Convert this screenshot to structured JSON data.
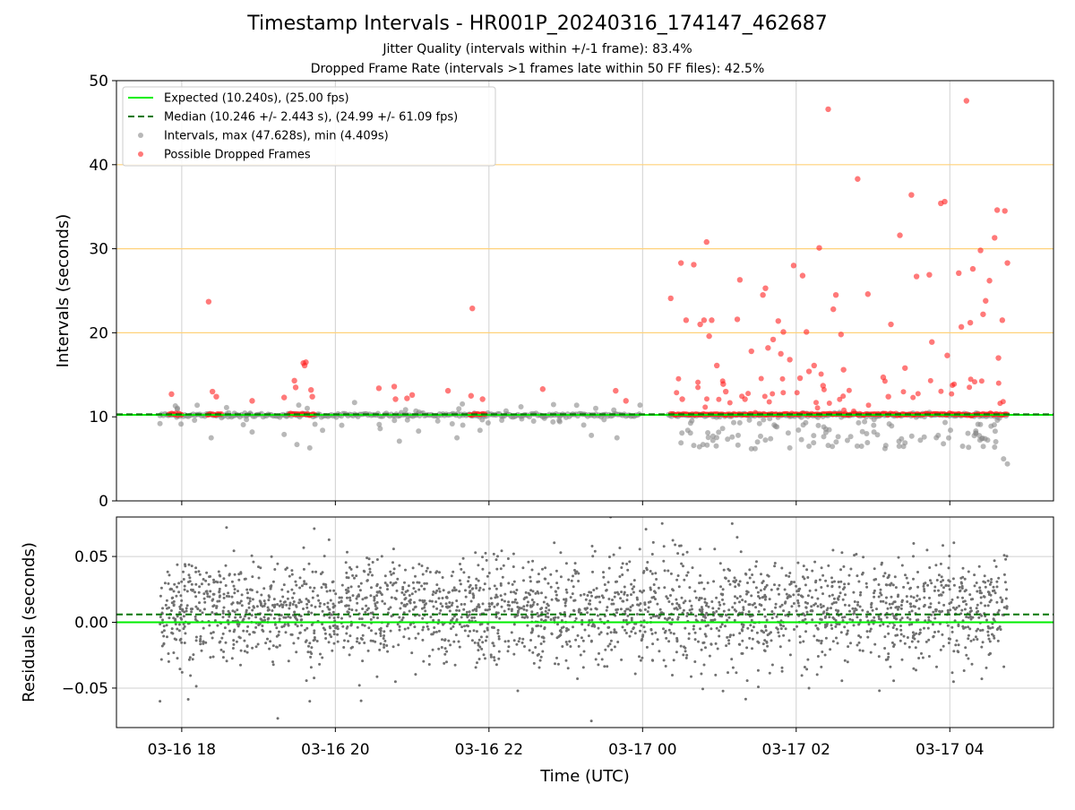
{
  "chart_data": [
    {
      "type": "scatter",
      "title": "Timestamp Intervals - HR001P_20240316_174147_462687",
      "subtitle_lines": [
        "Jitter Quality (intervals within +/-1 frame): 83.4%",
        "Dropped Frame Rate (intervals >1 frames late within 50 FF files): 42.5%"
      ],
      "xlabel": "",
      "ylabel": "Intervals (seconds)",
      "xlim": [
        "2024-03-16 17:09",
        "2024-03-17 05:21"
      ],
      "ylim": [
        0,
        50
      ],
      "yticks": [
        0,
        10,
        20,
        30,
        40,
        50
      ],
      "grid": true,
      "reference_lines": [
        {
          "name": "Expected (10.240s), (25.00 fps)",
          "y": 10.24,
          "color": "#00ee00",
          "style": "solid"
        },
        {
          "name": "Median (10.246 +/- 2.443 s), (24.99 +/- 61.09 fps)",
          "y": 10.246,
          "color": "#007700",
          "style": "dashed"
        }
      ],
      "horizontal_guides": [
        {
          "y": 20,
          "color": "#ffd27a"
        },
        {
          "y": 30,
          "color": "#ffd27a"
        },
        {
          "y": 40,
          "color": "#ffd27a"
        }
      ],
      "legend": {
        "position": "top-left",
        "entries": [
          "Expected (10.240s), (25.00 fps)",
          "Median (10.246 +/- 2.443 s), (24.99 +/- 61.09 fps)",
          "Intervals, max (47.628s), min (4.409s)",
          "Possible Dropped Frames"
        ]
      },
      "series": [
        {
          "name": "Intervals, max (47.628s), min (4.409s)",
          "color": "#888888",
          "x": [
            "2024-03-16 17:43",
            "2024-03-16 17:55",
            "2024-03-16 18:10",
            "2024-03-16 18:23",
            "2024-03-16 18:35",
            "2024-03-16 18:55",
            "2024-03-16 19:20",
            "2024-03-16 19:30",
            "2024-03-16 19:40",
            "2024-03-16 19:50",
            "2024-03-16 20:05",
            "2024-03-16 20:15",
            "2024-03-16 20:35",
            "2024-03-16 20:50",
            "2024-03-16 21:05",
            "2024-03-16 21:20",
            "2024-03-16 21:35",
            "2024-03-16 21:53",
            "2024-03-16 22:10",
            "2024-03-16 22:25",
            "2024-03-16 22:50",
            "2024-03-16 23:20",
            "2024-03-16 23:40",
            "2024-03-16 23:58",
            "2024-03-17 00:30",
            "2024-03-17 00:40",
            "2024-03-17 00:55",
            "2024-03-17 01:10",
            "2024-03-17 01:25",
            "2024-03-17 01:40",
            "2024-03-17 01:55",
            "2024-03-17 02:10",
            "2024-03-17 02:25",
            "2024-03-17 02:40",
            "2024-03-17 02:55",
            "2024-03-17 03:10",
            "2024-03-17 03:25",
            "2024-03-17 03:40",
            "2024-03-17 03:55",
            "2024-03-17 04:10",
            "2024-03-17 04:25",
            "2024-03-17 04:35",
            "2024-03-17 04:42",
            "2024-03-17 04:45"
          ],
          "y": [
            9.2,
            11.3,
            9.6,
            7.5,
            11.1,
            8.2,
            7.9,
            6.7,
            6.3,
            8.4,
            9.0,
            11.7,
            8.6,
            7.1,
            8.3,
            9.5,
            7.5,
            8.4,
            9.6,
            11.2,
            9.4,
            7.8,
            7.5,
            11.4,
            6.9,
            6.6,
            7.7,
            7.6,
            6.2,
            7.4,
            6.3,
            6.5,
            6.6,
            7.2,
            8.0,
            6.6,
            6.9,
            7.6,
            6.8,
            6.5,
            7.4,
            6.4,
            5.0,
            4.4
          ]
        },
        {
          "name": "Possible Dropped Frames",
          "color": "#ff2020",
          "x": [
            "2024-03-16 17:52",
            "2024-03-16 18:21",
            "2024-03-16 18:24",
            "2024-03-16 18:27",
            "2024-03-16 18:55",
            "2024-03-16 19:20",
            "2024-03-16 19:28",
            "2024-03-16 19:29",
            "2024-03-16 19:35",
            "2024-03-16 19:36",
            "2024-03-16 19:37",
            "2024-03-16 19:41",
            "2024-03-16 19:42",
            "2024-03-16 20:34",
            "2024-03-16 20:46",
            "2024-03-16 20:47",
            "2024-03-16 20:56",
            "2024-03-16 21:00",
            "2024-03-16 21:28",
            "2024-03-16 21:46",
            "2024-03-16 21:47",
            "2024-03-16 21:55",
            "2024-03-16 22:42",
            "2024-03-16 23:39",
            "2024-03-16 23:47",
            "2024-03-17 00:22",
            "2024-03-17 00:30",
            "2024-03-17 00:31",
            "2024-03-17 00:34",
            "2024-03-17 00:40",
            "2024-03-17 00:45",
            "2024-03-17 00:48",
            "2024-03-17 00:50",
            "2024-03-17 00:52",
            "2024-03-17 00:54",
            "2024-03-17 00:58",
            "2024-03-17 01:03",
            "2024-03-17 01:05",
            "2024-03-17 01:14",
            "2024-03-17 01:16",
            "2024-03-17 01:20",
            "2024-03-17 01:25",
            "2024-03-17 01:34",
            "2024-03-17 01:36",
            "2024-03-17 01:38",
            "2024-03-17 01:42",
            "2024-03-17 01:46",
            "2024-03-17 01:48",
            "2024-03-17 01:50",
            "2024-03-17 01:55",
            "2024-03-17 01:58",
            "2024-03-17 02:03",
            "2024-03-17 02:05",
            "2024-03-17 02:08",
            "2024-03-17 02:10",
            "2024-03-17 02:14",
            "2024-03-17 02:18",
            "2024-03-17 02:21",
            "2024-03-17 02:25",
            "2024-03-17 02:29",
            "2024-03-17 02:31",
            "2024-03-17 02:35",
            "2024-03-17 02:37",
            "2024-03-17 02:48",
            "2024-03-17 02:56",
            "2024-03-17 03:08",
            "2024-03-17 03:12",
            "2024-03-17 03:14",
            "2024-03-17 03:21",
            "2024-03-17 03:25",
            "2024-03-17 03:30",
            "2024-03-17 03:34",
            "2024-03-17 03:44",
            "2024-03-17 03:46",
            "2024-03-17 03:53",
            "2024-03-17 03:56",
            "2024-03-17 03:58",
            "2024-03-17 04:07",
            "2024-03-17 04:09",
            "2024-03-17 04:13",
            "2024-03-17 04:16",
            "2024-03-17 04:18",
            "2024-03-17 04:24",
            "2024-03-17 04:26",
            "2024-03-17 04:28",
            "2024-03-17 04:31",
            "2024-03-17 04:35",
            "2024-03-17 04:37",
            "2024-03-17 04:38",
            "2024-03-17 04:41",
            "2024-03-17 04:43",
            "2024-03-17 04:45"
          ],
          "y": [
            12.7,
            23.7,
            13.0,
            12.4,
            11.9,
            12.3,
            14.3,
            13.5,
            16.4,
            16.1,
            16.5,
            13.2,
            12.4,
            13.4,
            13.6,
            12.1,
            12.2,
            12.6,
            13.1,
            12.5,
            22.9,
            12.1,
            13.3,
            13.1,
            11.9,
            24.1,
            28.3,
            12.1,
            21.5,
            28.1,
            21.0,
            21.5,
            30.8,
            19.6,
            21.5,
            16.1,
            13.9,
            13.0,
            21.6,
            26.3,
            12.1,
            17.8,
            24.5,
            25.3,
            18.2,
            19.2,
            21.4,
            17.5,
            20.1,
            16.8,
            28.0,
            14.6,
            26.8,
            20.1,
            15.4,
            16.1,
            30.1,
            13.7,
            46.6,
            22.8,
            24.5,
            19.8,
            15.6,
            38.3,
            24.6,
            14.7,
            12.4,
            21.0,
            31.6,
            15.8,
            36.4,
            26.7,
            26.9,
            18.9,
            35.4,
            35.6,
            17.3,
            27.1,
            20.7,
            47.6,
            21.2,
            27.6,
            29.8,
            22.2,
            23.8,
            26.2,
            31.3,
            34.6,
            17.0,
            21.5,
            34.5,
            28.3
          ]
        }
      ]
    },
    {
      "type": "scatter",
      "title": "",
      "xlabel": "Time (UTC)",
      "ylabel": "Residuals (seconds)",
      "ylim": [
        -0.08,
        0.08
      ],
      "yticks": [
        0.05,
        0.0,
        -0.05
      ],
      "ytick_labels": [
        "0.05",
        "0.00",
        "−0.05"
      ],
      "xticks": [
        "2024-03-16 18:00",
        "2024-03-16 20:00",
        "2024-03-16 22:00",
        "2024-03-17 00:00",
        "2024-03-17 02:00",
        "2024-03-17 04:00"
      ],
      "xtick_labels": [
        "03-16 18",
        "03-16 20",
        "03-16 22",
        "03-17 00",
        "03-17 02",
        "03-17 04"
      ],
      "grid": true,
      "reference_lines": [
        {
          "y": 0.0,
          "color": "#00ee00",
          "style": "solid"
        },
        {
          "y": 0.006,
          "color": "#007700",
          "style": "dashed"
        }
      ],
      "series": [
        {
          "color": "#707070",
          "x_range": [
            "2024-03-16 17:43",
            "2024-03-17 04:45"
          ],
          "center": 0.008,
          "spread": 0.02,
          "approx_points": 2600,
          "x": [
            "2024-03-16 17:43",
            "2024-03-16 19:15",
            "2024-03-16 19:40",
            "2024-03-16 18:35",
            "2024-03-16 23:20",
            "2024-03-16 23:35",
            "2024-03-17 01:10",
            "2024-03-17 02:10",
            "2024-03-17 03:05",
            "2024-03-17 04:25"
          ],
          "y": [
            -0.06,
            -0.073,
            -0.06,
            0.072,
            -0.075,
            0.08,
            0.075,
            -0.05,
            -0.052,
            -0.043
          ]
        }
      ]
    }
  ]
}
